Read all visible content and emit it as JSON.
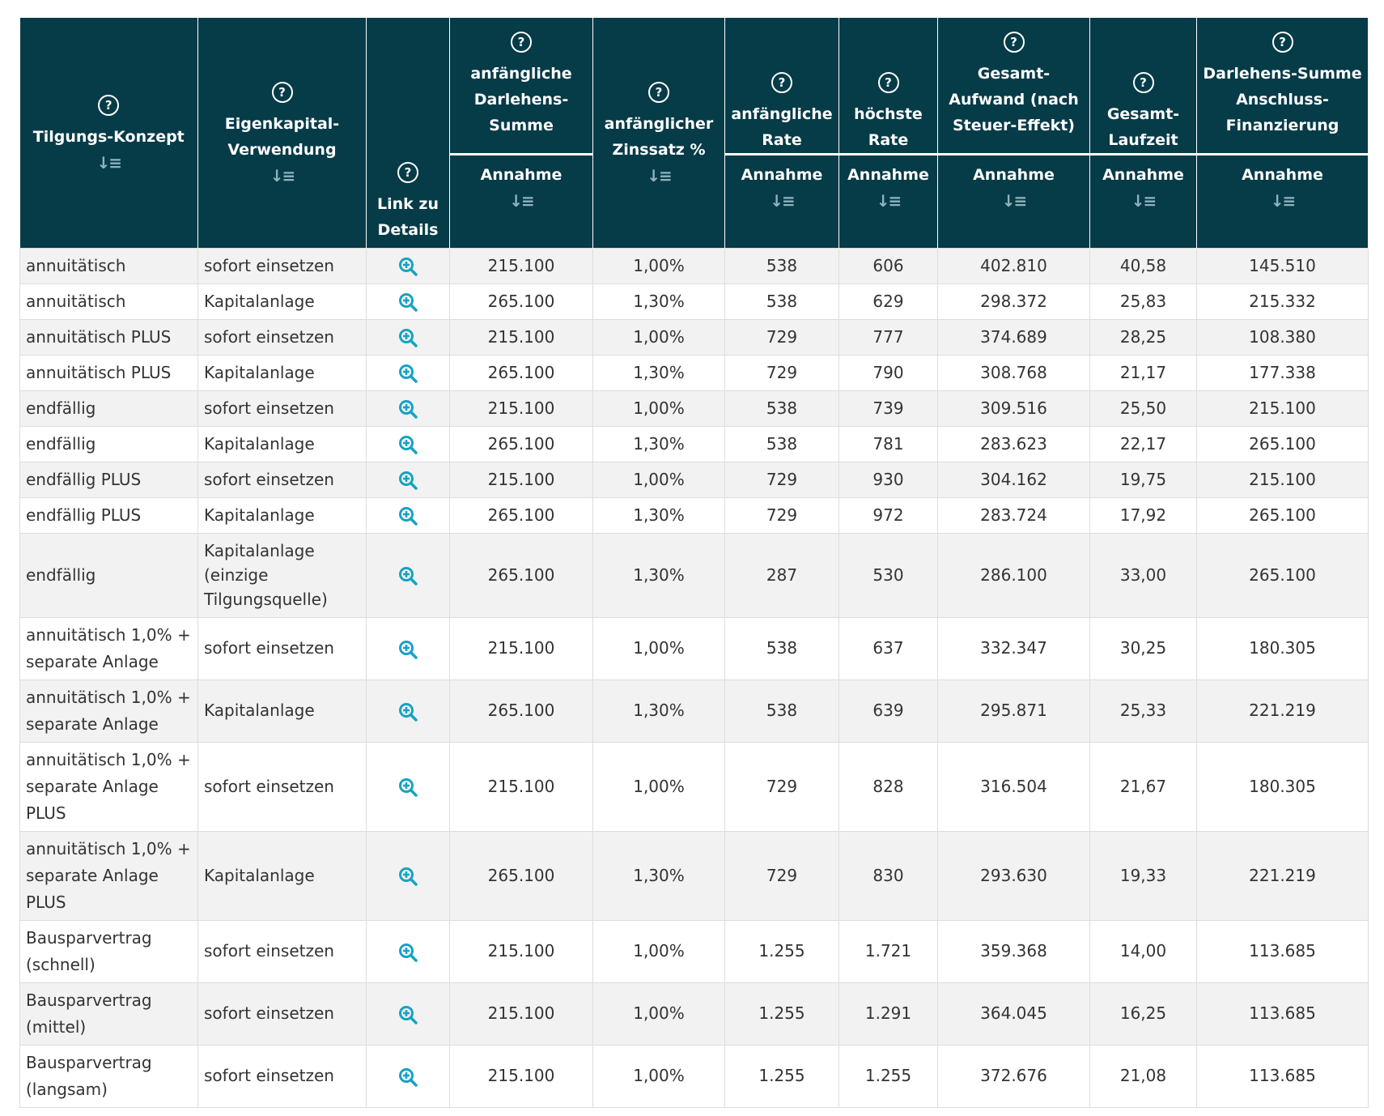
{
  "columns": [
    {
      "label": "Tilgungs-Konzept",
      "sub": ""
    },
    {
      "label": "Eigenkapital-Verwendung",
      "sub": ""
    },
    {
      "label": "Link zu Details",
      "sub": ""
    },
    {
      "label": "anfängliche Darlehens-Summe",
      "sub": "Annahme"
    },
    {
      "label": "anfänglicher Zinssatz %",
      "sub": ""
    },
    {
      "label": "anfängliche Rate",
      "sub": "Annahme"
    },
    {
      "label": "höchste Rate",
      "sub": "Annahme"
    },
    {
      "label": "Gesamt-Aufwand (nach Steuer-Effekt)",
      "sub": "Annahme"
    },
    {
      "label": "Gesamt-Laufzeit",
      "sub": "Annahme"
    },
    {
      "label": "Darlehens-Summe Anschluss-Finanzierung",
      "sub": "Annahme"
    }
  ],
  "icons": {
    "help": "help-circle-icon",
    "sort": "sort-descending-icon",
    "details": "zoom-in-icon"
  },
  "colors": {
    "header_bg": "#063b48",
    "link_icon": "#17a2c2",
    "row_alt": "#f2f2f2"
  },
  "rows": [
    [
      "annuitätisch",
      "sofort einsetzen",
      "215.100",
      "1,00%",
      "538",
      "606",
      "402.810",
      "40,58",
      "145.510"
    ],
    [
      "annuitätisch",
      "Kapitalanlage",
      "265.100",
      "1,30%",
      "538",
      "629",
      "298.372",
      "25,83",
      "215.332"
    ],
    [
      "annuitätisch PLUS",
      "sofort einsetzen",
      "215.100",
      "1,00%",
      "729",
      "777",
      "374.689",
      "28,25",
      "108.380"
    ],
    [
      "annuitätisch PLUS",
      "Kapitalanlage",
      "265.100",
      "1,30%",
      "729",
      "790",
      "308.768",
      "21,17",
      "177.338"
    ],
    [
      "endfällig",
      "sofort einsetzen",
      "215.100",
      "1,00%",
      "538",
      "739",
      "309.516",
      "25,50",
      "215.100"
    ],
    [
      "endfällig",
      "Kapitalanlage",
      "265.100",
      "1,30%",
      "538",
      "781",
      "283.623",
      "22,17",
      "265.100"
    ],
    [
      "endfällig PLUS",
      "sofort einsetzen",
      "215.100",
      "1,00%",
      "729",
      "930",
      "304.162",
      "19,75",
      "215.100"
    ],
    [
      "endfällig PLUS",
      "Kapitalanlage",
      "265.100",
      "1,30%",
      "729",
      "972",
      "283.724",
      "17,92",
      "265.100"
    ],
    [
      "endfällig",
      "Kapitalanlage (einzige Tilgungsquelle)",
      "265.100",
      "1,30%",
      "287",
      "530",
      "286.100",
      "33,00",
      "265.100"
    ],
    [
      "annuitätisch 1,0% + separate Anlage",
      "sofort einsetzen",
      "215.100",
      "1,00%",
      "538",
      "637",
      "332.347",
      "30,25",
      "180.305"
    ],
    [
      "annuitätisch 1,0% + separate Anlage",
      "Kapitalanlage",
      "265.100",
      "1,30%",
      "538",
      "639",
      "295.871",
      "25,33",
      "221.219"
    ],
    [
      "annuitätisch 1,0% + separate Anlage PLUS",
      "sofort einsetzen",
      "215.100",
      "1,00%",
      "729",
      "828",
      "316.504",
      "21,67",
      "180.305"
    ],
    [
      "annuitätisch 1,0% + separate Anlage PLUS",
      "Kapitalanlage",
      "265.100",
      "1,30%",
      "729",
      "830",
      "293.630",
      "19,33",
      "221.219"
    ],
    [
      "Bausparvertrag (schnell)",
      "sofort einsetzen",
      "215.100",
      "1,00%",
      "1.255",
      "1.721",
      "359.368",
      "14,00",
      "113.685"
    ],
    [
      "Bausparvertrag (mittel)",
      "sofort einsetzen",
      "215.100",
      "1,00%",
      "1.255",
      "1.291",
      "364.045",
      "16,25",
      "113.685"
    ],
    [
      "Bausparvertrag (langsam)",
      "sofort einsetzen",
      "215.100",
      "1,00%",
      "1.255",
      "1.255",
      "372.676",
      "21,08",
      "113.685"
    ]
  ]
}
